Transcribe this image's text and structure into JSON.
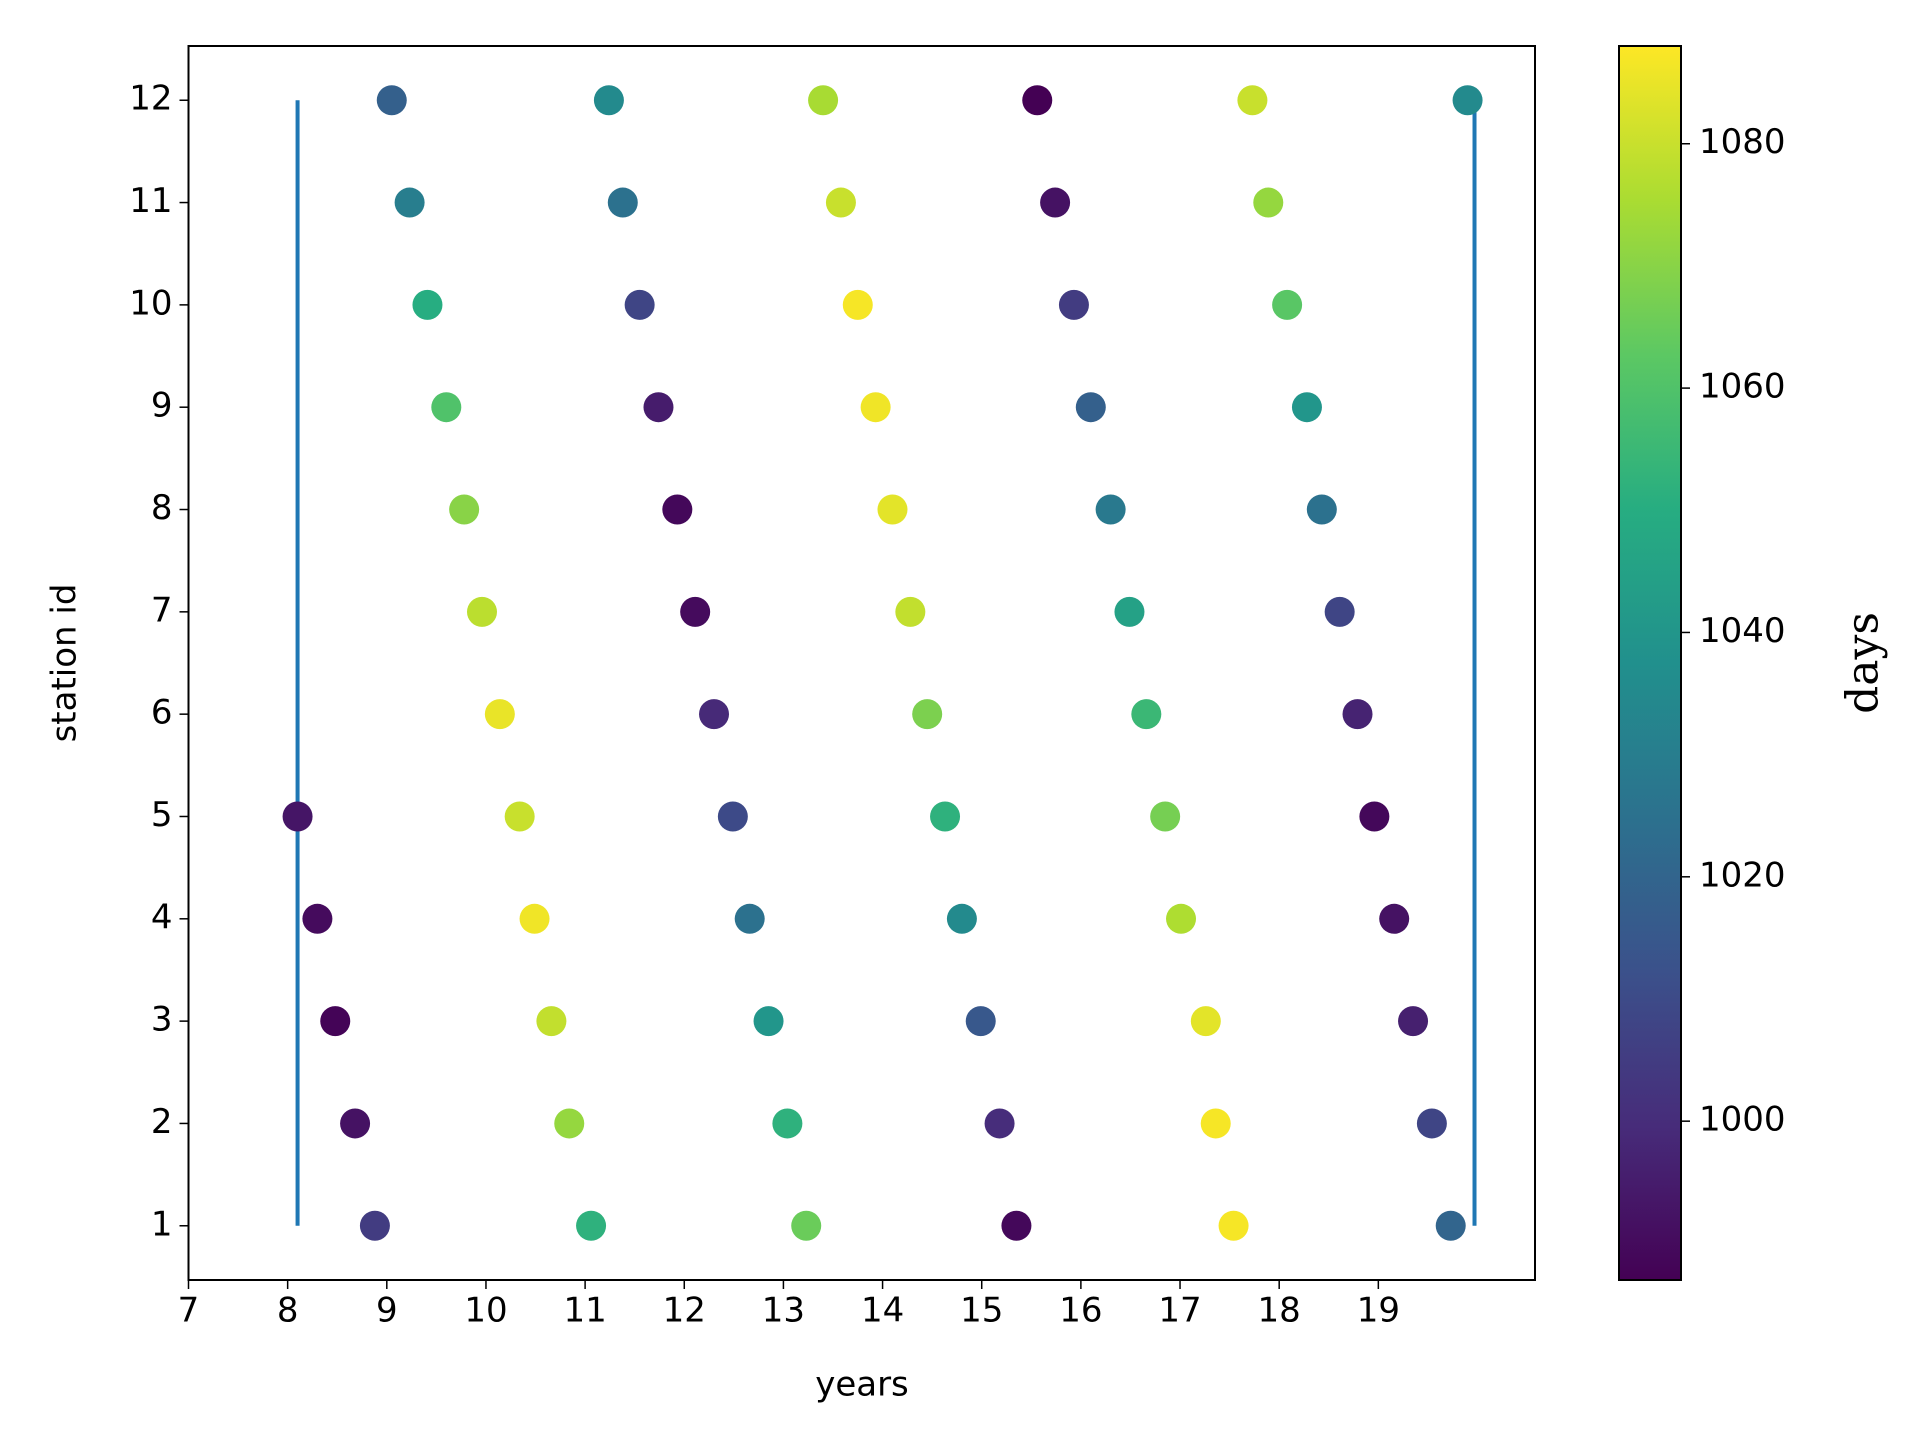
{
  "chart_data": {
    "type": "scatter",
    "x_label": "years",
    "y_label": "station id",
    "xlim": [
      7,
      20.58
    ],
    "ylim": [
      0.47,
      12.53
    ],
    "xticks": [
      7,
      8,
      9,
      10,
      11,
      12,
      13,
      14,
      15,
      16,
      17,
      18,
      19
    ],
    "yticks": [
      1,
      2,
      3,
      4,
      5,
      6,
      7,
      8,
      9,
      10,
      11,
      12
    ],
    "series": [
      {
        "x": [
          8.1,
          8.3,
          8.48,
          8.68,
          8.88,
          9.05,
          9.23,
          9.41,
          9.6,
          9.78,
          9.96,
          10.14,
          10.34,
          10.49,
          10.66,
          10.84,
          11.06,
          11.24,
          11.38,
          11.55,
          11.74,
          11.93,
          12.11,
          12.3,
          12.49,
          12.66,
          12.85,
          13.04,
          13.23,
          13.4,
          13.58,
          13.75,
          13.93,
          14.1,
          14.28,
          14.45,
          14.63,
          14.8,
          14.99,
          15.18,
          15.35,
          15.56,
          15.74,
          15.93,
          16.1,
          16.3,
          16.49,
          16.66,
          16.85,
          17.01,
          17.26,
          17.36,
          17.54,
          17.73,
          17.89,
          18.08,
          18.28,
          18.43,
          18.61,
          18.79,
          18.96,
          19.16,
          19.35,
          19.54,
          19.73,
          19.9
        ],
        "values": [
          5,
          4,
          3,
          2,
          1,
          12,
          11,
          10,
          9,
          8,
          7,
          6,
          5,
          4,
          3,
          2,
          1,
          12,
          11,
          10,
          9,
          8,
          7,
          6,
          5,
          4,
          3,
          2,
          1,
          12,
          11,
          10,
          9,
          8,
          7,
          6,
          5,
          4,
          3,
          2,
          1,
          12,
          11,
          10,
          9,
          8,
          7,
          6,
          5,
          4,
          3,
          2,
          1,
          12,
          11,
          10,
          9,
          8,
          7,
          6,
          5,
          4,
          3,
          2,
          1,
          12
        ],
        "c": [
          993,
          990,
          988,
          992,
          1005,
          1018,
          1030,
          1050,
          1060,
          1070,
          1078,
          1085,
          1080,
          1086,
          1079,
          1072,
          1052,
          1035,
          1025,
          1008,
          995,
          989,
          990,
          999,
          1010,
          1025,
          1040,
          1052,
          1065,
          1075,
          1080,
          1087,
          1086,
          1084,
          1079,
          1068,
          1052,
          1035,
          1015,
          1000,
          989,
          987,
          992,
          1005,
          1018,
          1028,
          1045,
          1055,
          1067,
          1076,
          1084,
          1087,
          1087,
          1080,
          1072,
          1062,
          1040,
          1025,
          1008,
          997,
          989,
          992,
          996,
          1008,
          1020,
          1035
        ]
      }
    ],
    "vlines": {
      "x": [
        8.1,
        19.97
      ],
      "ymin": [
        1,
        1
      ],
      "ymax": [
        12,
        12
      ],
      "color": "#1f77b4"
    },
    "colorbar": {
      "label": "days",
      "lim": [
        987,
        1088
      ],
      "ticks": [
        1000,
        1020,
        1040,
        1060,
        1080
      ],
      "colormap": "viridis"
    }
  }
}
